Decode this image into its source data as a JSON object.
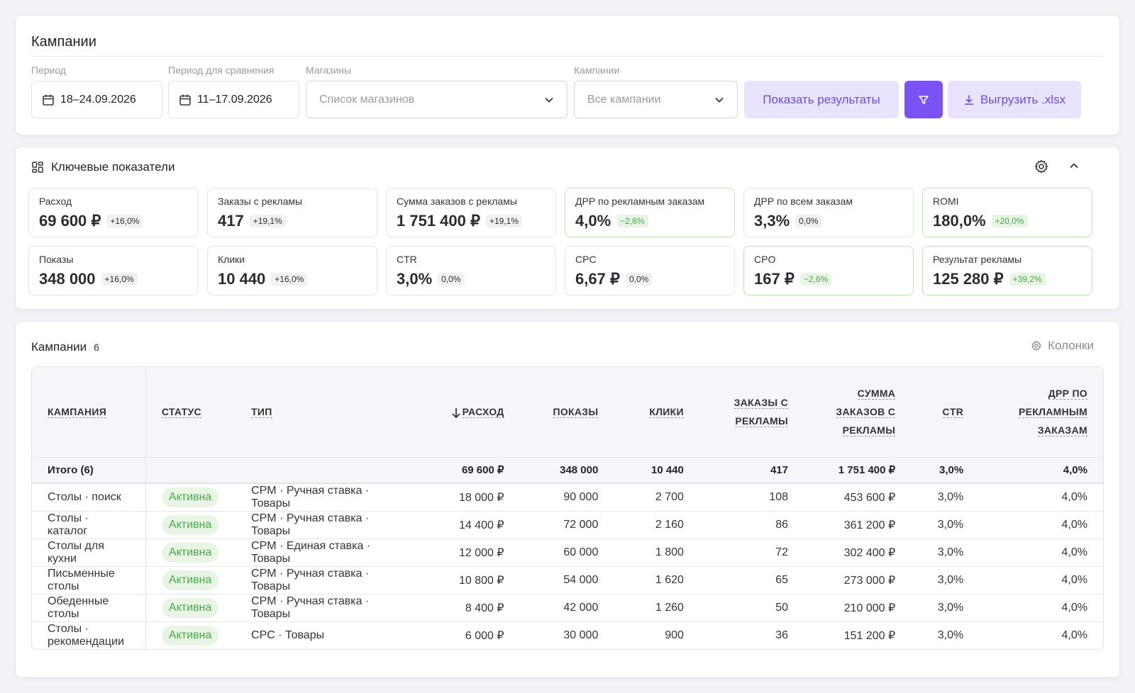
{
  "filters": {
    "title": "Кампании",
    "period_label": "Период",
    "period_value": "18–24.09.2026",
    "compare_label": "Период для сравнения",
    "compare_value": "11–17.09.2026",
    "shops_label": "Магазины",
    "shops_placeholder": "Список магазинов",
    "campaigns_label": "Кампании",
    "campaigns_value": "Все кампании",
    "show_results": "Показать результаты",
    "export": "Выгрузить .xlsx",
    "accent": "#7b52f3"
  },
  "kpi": {
    "title": "Ключевые показатели",
    "cells": [
      {
        "label": "Расход",
        "value": "69 600 ₽",
        "delta": "+16,0%"
      },
      {
        "label": "Заказы с рекламы",
        "value": "417",
        "delta": "+19,1%"
      },
      {
        "label": "Сумма заказов с рекламы",
        "value": "1 751 400 ₽",
        "delta": "+19,1%"
      },
      {
        "label": "ДРР по рекламным заказам",
        "value": "4,0%",
        "delta": "−2,6%"
      },
      {
        "label": "ДРР по всем заказам",
        "value": "3,3%",
        "delta": "0,0%"
      },
      {
        "label": "ROMI",
        "value": "180,0%",
        "delta": "+20,0%"
      },
      {
        "label": "Показы",
        "value": "348 000",
        "delta": "+16,0%"
      },
      {
        "label": "Клики",
        "value": "10 440",
        "delta": "+16,0%"
      },
      {
        "label": "CTR",
        "value": "3,0%",
        "delta": "0,0%"
      },
      {
        "label": "CPC",
        "value": "6,67 ₽",
        "delta": "0,0%"
      },
      {
        "label": "CPO",
        "value": "167 ₽",
        "delta": "−2,6%"
      },
      {
        "label": "Результат рекламы",
        "value": "125 280 ₽",
        "delta": "+39,2%"
      }
    ]
  },
  "campaigns": {
    "title": "Кампании",
    "count": "6",
    "columns_button": "Колонки",
    "headers": {
      "campaign": "КАМПАНИЯ",
      "status": "СТАТУС",
      "type": "ТИП",
      "spend": "РАСХОД",
      "impressions": "ПОКАЗЫ",
      "clicks": "КЛИКИ",
      "orders": "ЗАКАЗЫ С РЕКЛАМЫ",
      "orders_sum": "СУММА ЗАКАЗОВ С РЕКЛАМЫ",
      "ctr": "CTR",
      "drr": "ДРР ПО РЕКЛАМНЫМ ЗАКАЗАМ"
    },
    "total": {
      "label": "Итого (6)",
      "spend": "69 600 ₽",
      "impressions": "348 000",
      "clicks": "10 440",
      "orders": "417",
      "orders_sum": "1 751 400 ₽",
      "ctr": "3,0%",
      "drr": "4,0%"
    },
    "rows": [
      {
        "name": "Столы · поиск",
        "status": "Активна",
        "type": "CPM · Ручная ставка · Товары",
        "spend": "18 000 ₽",
        "impressions": "90 000",
        "clicks": "2 700",
        "orders": "108",
        "orders_sum": "453 600 ₽",
        "ctr": "3,0%",
        "drr": "4,0%"
      },
      {
        "name": "Столы · каталог",
        "status": "Активна",
        "type": "CPM · Ручная ставка · Товары",
        "spend": "14 400 ₽",
        "impressions": "72 000",
        "clicks": "2 160",
        "orders": "86",
        "orders_sum": "361 200 ₽",
        "ctr": "3,0%",
        "drr": "4,0%"
      },
      {
        "name": "Столы для кухни",
        "status": "Активна",
        "type": "CPM · Единая ставка · Товары",
        "spend": "12 000 ₽",
        "impressions": "60 000",
        "clicks": "1 800",
        "orders": "72",
        "orders_sum": "302 400 ₽",
        "ctr": "3,0%",
        "drr": "4,0%"
      },
      {
        "name": "Письменные столы",
        "status": "Активна",
        "type": "CPM · Ручная ставка · Товары",
        "spend": "10 800 ₽",
        "impressions": "54 000",
        "clicks": "1 620",
        "orders": "65",
        "orders_sum": "273 000 ₽",
        "ctr": "3,0%",
        "drr": "4,0%"
      },
      {
        "name": "Обеденные столы",
        "status": "Активна",
        "type": "CPM · Ручная ставка · Товары",
        "spend": "8 400 ₽",
        "impressions": "42 000",
        "clicks": "1 260",
        "orders": "50",
        "orders_sum": "210 000 ₽",
        "ctr": "3,0%",
        "drr": "4,0%"
      },
      {
        "name": "Столы · рекомендации",
        "status": "Активна",
        "type": "CPC · Товары",
        "spend": "6 000 ₽",
        "impressions": "30 000",
        "clicks": "900",
        "orders": "36",
        "orders_sum": "151 200 ₽",
        "ctr": "3,0%",
        "drr": "4,0%"
      }
    ]
  }
}
